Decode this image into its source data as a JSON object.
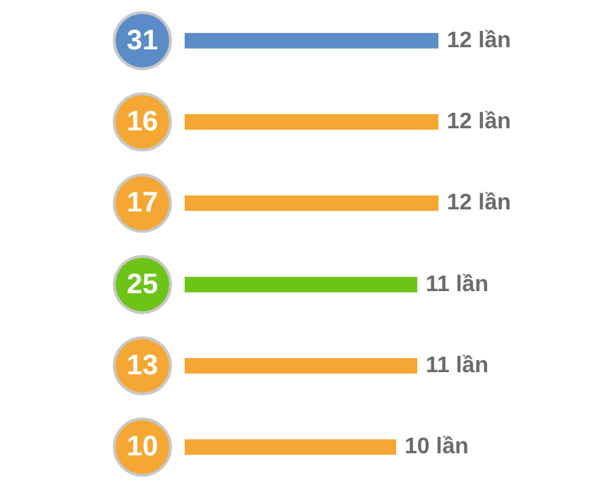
{
  "chart_data": {
    "type": "bar",
    "orientation": "horizontal",
    "categories": [
      "31",
      "16",
      "17",
      "25",
      "13",
      "10"
    ],
    "values": [
      12,
      12,
      12,
      11,
      11,
      10
    ],
    "colors": [
      "#5b8cc8",
      "#f5a733",
      "#f5a733",
      "#6cc417",
      "#f5a733",
      "#f5a733"
    ],
    "value_labels": [
      "12 lần",
      "12 lần",
      "12 lần",
      "11 lần",
      "11 lần",
      "10 lần"
    ]
  }
}
